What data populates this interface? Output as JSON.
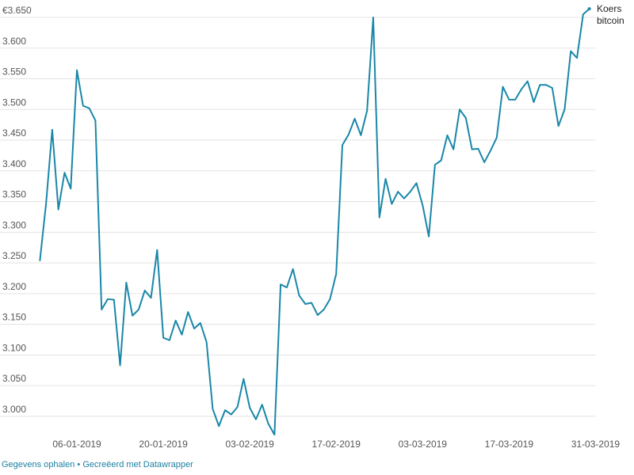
{
  "chart_data": {
    "type": "line",
    "x": [
      "31-12-2018",
      "01-01-2019",
      "02-01-2019",
      "03-01-2019",
      "04-01-2019",
      "05-01-2019",
      "06-01-2019",
      "07-01-2019",
      "08-01-2019",
      "09-01-2019",
      "10-01-2019",
      "11-01-2019",
      "12-01-2019",
      "13-01-2019",
      "14-01-2019",
      "15-01-2019",
      "16-01-2019",
      "17-01-2019",
      "18-01-2019",
      "19-01-2019",
      "20-01-2019",
      "21-01-2019",
      "22-01-2019",
      "23-01-2019",
      "24-01-2019",
      "25-01-2019",
      "26-01-2019",
      "27-01-2019",
      "28-01-2019",
      "29-01-2019",
      "30-01-2019",
      "31-01-2019",
      "01-02-2019",
      "02-02-2019",
      "03-02-2019",
      "04-02-2019",
      "05-02-2019",
      "06-02-2019",
      "07-02-2019",
      "08-02-2019",
      "09-02-2019",
      "10-02-2019",
      "11-02-2019",
      "12-02-2019",
      "13-02-2019",
      "14-02-2019",
      "15-02-2019",
      "16-02-2019",
      "17-02-2019",
      "18-02-2019",
      "19-02-2019",
      "20-02-2019",
      "21-02-2019",
      "22-02-2019",
      "23-02-2019",
      "24-02-2019",
      "25-02-2019",
      "26-02-2019",
      "27-02-2019",
      "28-02-2019",
      "01-03-2019",
      "02-03-2019",
      "03-03-2019",
      "04-03-2019",
      "05-03-2019",
      "06-03-2019",
      "07-03-2019",
      "08-03-2019",
      "09-03-2019",
      "10-03-2019",
      "11-03-2019",
      "12-03-2019",
      "13-03-2019",
      "14-03-2019",
      "15-03-2019",
      "16-03-2019",
      "17-03-2019",
      "18-03-2019",
      "19-03-2019",
      "20-03-2019",
      "21-03-2019",
      "22-03-2019",
      "23-03-2019",
      "24-03-2019",
      "25-03-2019",
      "26-03-2019",
      "27-03-2019",
      "28-03-2019",
      "29-03-2019",
      "30-03-2019"
    ],
    "series": [
      {
        "name": "Koers bitcoin",
        "color": "#1a87a8",
        "values": [
          3253,
          3346,
          3467,
          3337,
          3397,
          3371,
          3564,
          3506,
          3502,
          3482,
          3174,
          3191,
          3190,
          3083,
          3218,
          3164,
          3174,
          3205,
          3193,
          3271,
          3128,
          3124,
          3156,
          3133,
          3170,
          3143,
          3152,
          3121,
          3012,
          2984,
          3010,
          3003,
          3015,
          3061,
          3014,
          2995,
          3019,
          2988,
          2970,
          3215,
          3210,
          3240,
          3197,
          3183,
          3185,
          3165,
          3174,
          3191,
          3232,
          3442,
          3459,
          3485,
          3458,
          3498,
          3650,
          3324,
          3387,
          3346,
          3366,
          3355,
          3366,
          3380,
          3344,
          3293,
          3410,
          3417,
          3458,
          3435,
          3500,
          3486,
          3435,
          3436,
          3414,
          3433,
          3454,
          3537,
          3516,
          3516,
          3533,
          3546,
          3512,
          3540,
          3540,
          3535,
          3473,
          3500,
          3595,
          3584,
          3655,
          3664
        ]
      }
    ],
    "xlim": [
      "31-12-2018",
      "31-03-2019"
    ],
    "xticks": [
      "06-01-2019",
      "20-01-2019",
      "03-02-2019",
      "17-02-2019",
      "03-03-2019",
      "17-03-2019",
      "31-03-2019"
    ],
    "ylim": [
      2965,
      3670
    ],
    "yticks": [
      {
        "value": 3000,
        "label": "3.000"
      },
      {
        "value": 3050,
        "label": "3.050"
      },
      {
        "value": 3100,
        "label": "3.100"
      },
      {
        "value": 3150,
        "label": "3.150"
      },
      {
        "value": 3200,
        "label": "3.200"
      },
      {
        "value": 3250,
        "label": "3.250"
      },
      {
        "value": 3300,
        "label": "3.300"
      },
      {
        "value": 3350,
        "label": "3.350"
      },
      {
        "value": 3400,
        "label": "3.400"
      },
      {
        "value": 3450,
        "label": "3.450"
      },
      {
        "value": 3500,
        "label": "3.500"
      },
      {
        "value": 3550,
        "label": "3.550"
      },
      {
        "value": 3600,
        "label": "3.600"
      },
      {
        "value": 3650,
        "label": "€3.650"
      }
    ],
    "grid": true
  },
  "footer": {
    "links": [
      "Gegevens ophalen",
      "Gecreëerd met Datawrapper"
    ],
    "separator": "•"
  }
}
